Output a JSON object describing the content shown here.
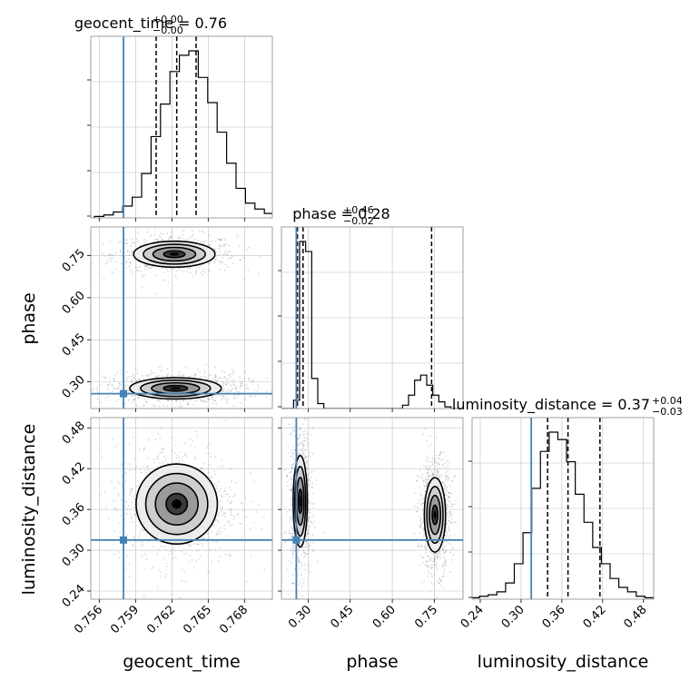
{
  "chart_data": {
    "type": "corner",
    "parameters": [
      "geocent_time",
      "phase",
      "luminosity_distance"
    ],
    "truths": {
      "geocent_time": 0.758,
      "phase": 0.258,
      "luminosity_distance": 0.315
    },
    "colors": {
      "truth": "#4682b4",
      "hist": "#000000",
      "grid": "#c0c0c0",
      "scatter": "#555555"
    },
    "titles": [
      {
        "param": "geocent_time",
        "text": "geocent_time = 0.76",
        "plus": "+0.00",
        "minus": "−0.00"
      },
      {
        "param": "phase",
        "text": "phase = 0.28",
        "plus": "+0.46",
        "minus": "−0.02"
      },
      {
        "param": "luminosity_distance",
        "text": "luminosity_distance = 0.37",
        "plus": "+0.04",
        "minus": "−0.03"
      }
    ],
    "quantiles": {
      "geocent_time": [
        0.7607,
        0.7624,
        0.764
      ],
      "phase": [
        0.262,
        0.282,
        0.74
      ],
      "luminosity_distance": [
        0.339,
        0.369,
        0.416
      ]
    },
    "ranges": {
      "geocent_time": [
        0.7553,
        0.7703
      ],
      "phase": [
        0.205,
        0.852
      ],
      "luminosity_distance": [
        0.228,
        0.495
      ]
    },
    "ticks": {
      "geocent_time": [
        "0.756",
        "0.759",
        "0.762",
        "0.765",
        "0.768"
      ],
      "phase": [
        "0.30",
        "0.45",
        "0.60",
        "0.75"
      ],
      "luminosity_distance": [
        "0.24",
        "0.30",
        "0.36",
        "0.42",
        "0.48"
      ]
    },
    "histograms": {
      "geocent_time": {
        "edges": [
          0.7556,
          0.7712
        ],
        "counts": [
          1,
          2,
          4,
          8,
          14,
          30,
          55,
          77,
          99,
          110,
          113,
          95,
          78,
          58,
          37,
          20,
          10,
          6,
          3,
          1
        ]
      },
      "phase": {
        "edges": [
          0.205,
          0.852
        ],
        "counts": [
          0,
          0,
          5,
          100,
          94,
          18,
          3,
          0,
          0,
          0,
          0,
          0,
          0,
          0,
          0,
          0,
          0,
          0,
          0,
          0,
          2,
          8,
          17,
          20,
          14,
          8,
          4,
          1,
          0,
          0
        ]
      },
      "luminosity_distance": {
        "edges": [
          0.226,
          0.495
        ],
        "counts": [
          1,
          2,
          3,
          5,
          11,
          24,
          45,
          75,
          100,
          113,
          108,
          93,
          71,
          52,
          35,
          24,
          14,
          8,
          5,
          2,
          1
        ]
      }
    },
    "modes": {
      "geocent_time-phase": [
        {
          "x": 0.7622,
          "y": 0.755,
          "sx": 0.0016,
          "sy": 0.022
        },
        {
          "x": 0.7623,
          "y": 0.277,
          "sx": 0.0018,
          "sy": 0.018
        }
      ],
      "geocent_time-luminosity_distance": [
        {
          "x": 0.7624,
          "y": 0.368,
          "sx": 0.0016,
          "sy": 0.028
        }
      ],
      "phase-luminosity_distance": [
        {
          "x": 0.272,
          "y": 0.372,
          "sx": 0.012,
          "sy": 0.032
        },
        {
          "x": 0.752,
          "y": 0.352,
          "sx": 0.018,
          "sy": 0.026
        }
      ]
    },
    "axis_labels": {
      "x_geocent_time": "geocent_time",
      "x_phase": "phase",
      "x_luminosity_distance": "luminosity_distance",
      "y_phase": "phase",
      "y_luminosity_distance": "luminosity_distance"
    },
    "grid": true
  }
}
